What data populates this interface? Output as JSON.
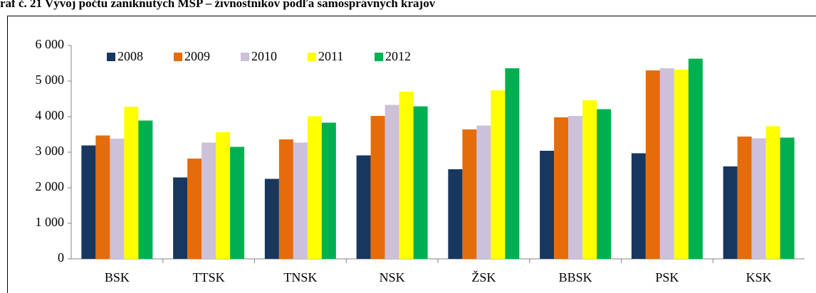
{
  "chart_data": {
    "type": "bar",
    "title": "raf č. 21 Vývoj počtu zaniknutých MSP – živnostníkov podľa samosprávnych krajov",
    "categories": [
      "BSK",
      "TTSK",
      "TNSK",
      "NSK",
      "ŽSK",
      "BBSK",
      "PSK",
      "KSK"
    ],
    "series": [
      {
        "name": "2008",
        "color": "#17375e",
        "values": [
          3190,
          2290,
          2250,
          2910,
          2520,
          3040,
          2970,
          2600
        ]
      },
      {
        "name": "2009",
        "color": "#e46c0a",
        "values": [
          3470,
          2820,
          3360,
          4020,
          3640,
          3980,
          5300,
          3440
        ]
      },
      {
        "name": "2010",
        "color": "#ccc0da",
        "values": [
          3380,
          3270,
          3270,
          4330,
          3750,
          4020,
          5360,
          3390
        ]
      },
      {
        "name": "2011",
        "color": "#ffff00",
        "values": [
          4280,
          3560,
          4010,
          4700,
          4740,
          4460,
          5320,
          3730
        ]
      },
      {
        "name": "2012",
        "color": "#00b050",
        "values": [
          3890,
          3150,
          3830,
          4290,
          5360,
          4210,
          5630,
          3410
        ]
      }
    ],
    "ylim": [
      0,
      6000
    ],
    "yticks": [
      0,
      {
        "value": 1000,
        "label": "1 000"
      },
      {
        "value": 2000,
        "label": "2 000"
      },
      {
        "value": 3000,
        "label": "3 000"
      },
      {
        "value": 4000,
        "label": "4 000"
      },
      {
        "value": 5000,
        "label": "5 000"
      },
      {
        "value": 6000,
        "label": "6 000"
      }
    ],
    "grid": false,
    "legend": "top-left"
  }
}
